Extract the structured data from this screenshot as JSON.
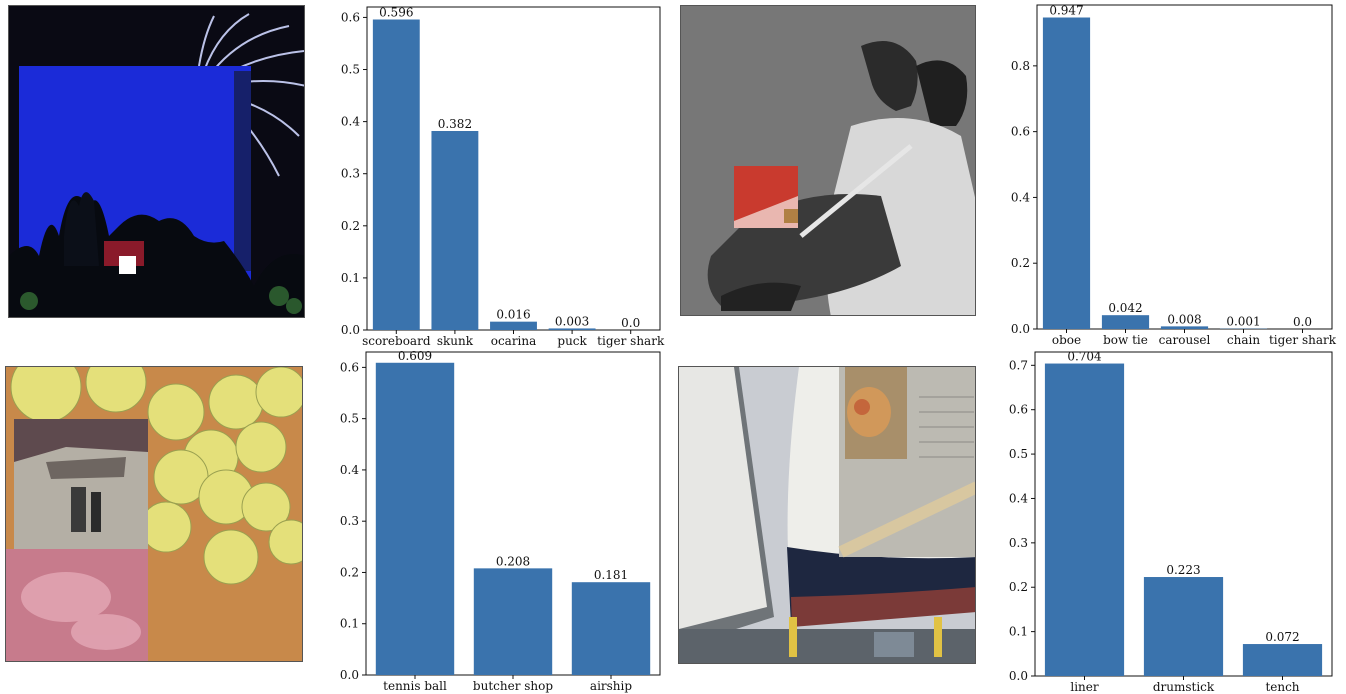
{
  "palette": {
    "bar": "#3a73ad",
    "axis": "#111111"
  },
  "images": [
    {
      "name": "fireworks-blue-sky-image"
    },
    {
      "name": "couple-flute-bw-image"
    },
    {
      "name": "tennis-balls-image"
    },
    {
      "name": "ship-liner-image"
    }
  ],
  "chart_data": [
    {
      "type": "bar",
      "categories": [
        "scoreboard",
        "skunk",
        "ocarina",
        "puck",
        "tiger shark"
      ],
      "values": [
        0.596,
        0.382,
        0.016,
        0.003,
        0.0
      ],
      "labels": [
        "0.596",
        "0.382",
        "0.016",
        "0.003",
        "0.0"
      ],
      "ylim": [
        0,
        0.62
      ],
      "yticks": [
        "0.0",
        "0.1",
        "0.2",
        "0.3",
        "0.4",
        "0.5",
        "0.6"
      ],
      "ytick_values": [
        0,
        0.1,
        0.2,
        0.3,
        0.4,
        0.5,
        0.6
      ],
      "grid": false
    },
    {
      "type": "bar",
      "categories": [
        "oboe",
        "bow tie",
        "carousel",
        "chain",
        "tiger shark"
      ],
      "values": [
        0.947,
        0.042,
        0.008,
        0.001,
        0.0
      ],
      "labels": [
        "0.947",
        "0.042",
        "0.008",
        "0.001",
        "0.0"
      ],
      "ylim": [
        0,
        0.985
      ],
      "yticks": [
        "0.0",
        "0.2",
        "0.4",
        "0.6",
        "0.8"
      ],
      "ytick_values": [
        0,
        0.2,
        0.4,
        0.6,
        0.8
      ],
      "grid": false
    },
    {
      "type": "bar",
      "categories": [
        "tennis ball",
        "butcher shop",
        "airship"
      ],
      "values": [
        0.609,
        0.208,
        0.181
      ],
      "labels": [
        "0.609",
        "0.208",
        "0.181"
      ],
      "ylim": [
        0,
        0.63
      ],
      "yticks": [
        "0.0",
        "0.1",
        "0.2",
        "0.3",
        "0.4",
        "0.5",
        "0.6"
      ],
      "ytick_values": [
        0,
        0.1,
        0.2,
        0.3,
        0.4,
        0.5,
        0.6
      ],
      "grid": false
    },
    {
      "type": "bar",
      "categories": [
        "liner",
        "drumstick",
        "tench"
      ],
      "values": [
        0.704,
        0.223,
        0.072
      ],
      "labels": [
        "0.704",
        "0.223",
        "0.072"
      ],
      "ylim": [
        0,
        0.73
      ],
      "yticks": [
        "0.0",
        "0.1",
        "0.2",
        "0.3",
        "0.4",
        "0.5",
        "0.6",
        "0.7"
      ],
      "ytick_values": [
        0,
        0.1,
        0.2,
        0.3,
        0.4,
        0.5,
        0.6,
        0.7
      ],
      "grid": false
    }
  ]
}
